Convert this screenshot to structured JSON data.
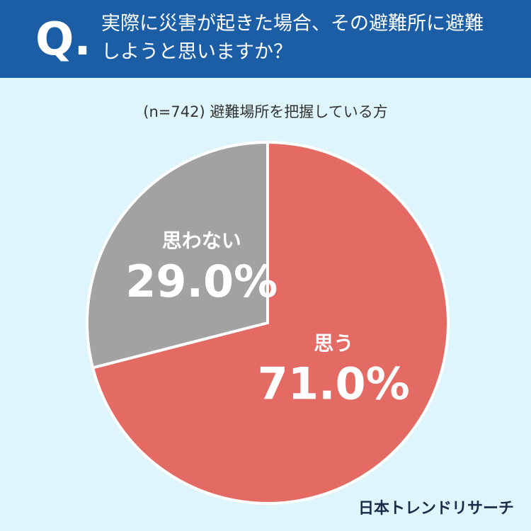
{
  "chart_data": {
    "type": "pie",
    "q_label": "Q.",
    "title": "実際に災害が起きた場合、その避難所に避難しようと思いますか？",
    "subtitle": "(n=742) 避難場所を把握している方",
    "categories": [
      "思う",
      "思わない"
    ],
    "values": [
      71.0,
      29.0
    ],
    "value_labels": [
      "71.0%",
      "29.0%"
    ],
    "colors": [
      "#e46a64",
      "#a2a2a2"
    ],
    "source": "日本トレンドリサーチ"
  }
}
